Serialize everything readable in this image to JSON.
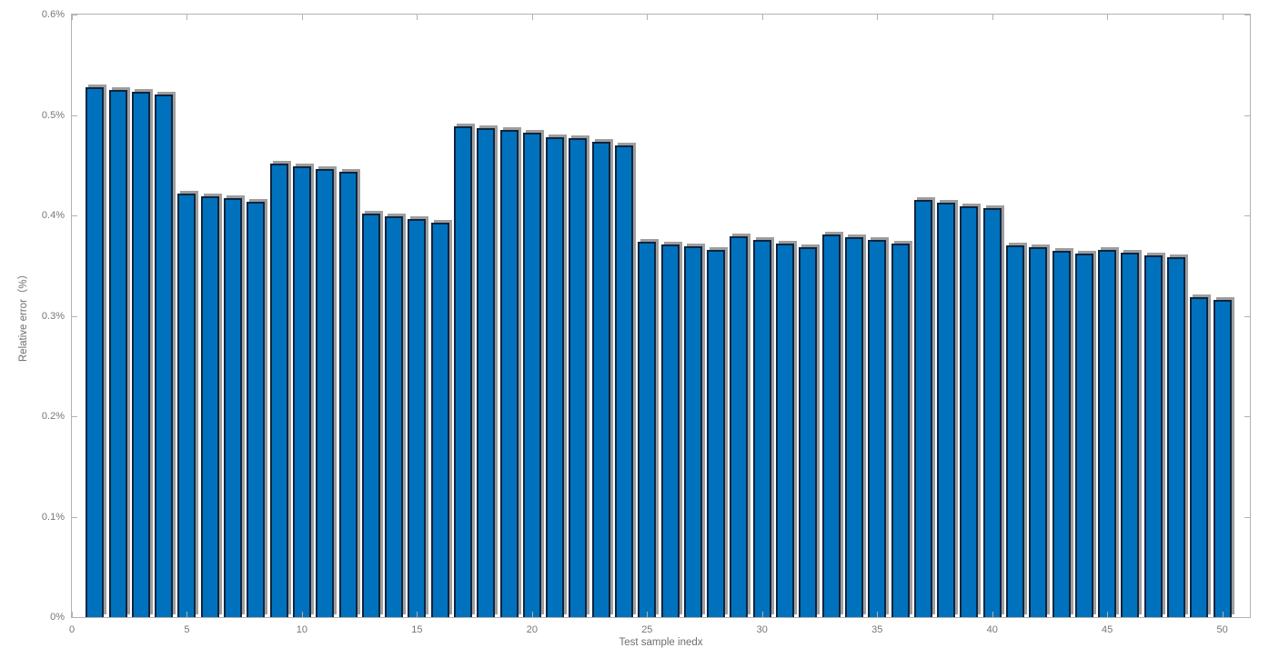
{
  "figure": {
    "background": "#ffffff",
    "axis_box_color": "#b2b2b2",
    "tick_label_color": "#767676",
    "bar_fill_color": "#0072bd",
    "bar_edge_color": "#0d2540",
    "bar_shadow_color": "#9e9e9e"
  },
  "chart_data": {
    "type": "bar",
    "title": "",
    "xlabel": "Test sample inedx",
    "ylabel": "Relative error（%）",
    "x": [
      1,
      2,
      3,
      4,
      5,
      6,
      7,
      8,
      9,
      10,
      11,
      12,
      13,
      14,
      15,
      16,
      17,
      18,
      19,
      20,
      21,
      22,
      23,
      24,
      25,
      26,
      27,
      28,
      29,
      30,
      31,
      32,
      33,
      34,
      35,
      36,
      37,
      38,
      39,
      40,
      41,
      42,
      43,
      44,
      45,
      46,
      47,
      48,
      49,
      50
    ],
    "values": [
      0.528,
      0.525,
      0.523,
      0.52,
      0.422,
      0.419,
      0.417,
      0.414,
      0.452,
      0.449,
      0.446,
      0.443,
      0.402,
      0.399,
      0.396,
      0.393,
      0.489,
      0.487,
      0.485,
      0.482,
      0.478,
      0.477,
      0.473,
      0.47,
      0.374,
      0.371,
      0.369,
      0.366,
      0.379,
      0.376,
      0.372,
      0.368,
      0.381,
      0.378,
      0.376,
      0.372,
      0.415,
      0.413,
      0.409,
      0.407,
      0.37,
      0.368,
      0.365,
      0.362,
      0.366,
      0.363,
      0.36,
      0.358,
      0.319,
      0.316
    ],
    "xticks": [
      0,
      5,
      10,
      15,
      20,
      25,
      30,
      35,
      40,
      45,
      50
    ],
    "xtick_labels": [
      "0",
      "5",
      "10",
      "15",
      "20",
      "25",
      "30",
      "35",
      "40",
      "45",
      "50"
    ],
    "yticks": [
      0,
      0.1,
      0.2,
      0.3,
      0.4,
      0.5,
      0.6
    ],
    "ytick_labels": [
      "0%",
      "0.1%",
      "0.2%",
      "0.3%",
      "0.4%",
      "0.5%",
      "0.6%"
    ],
    "xlim": [
      0,
      51.2
    ],
    "ylim": [
      0,
      0.6
    ],
    "grid": "off",
    "legend": "none",
    "box": "on"
  }
}
